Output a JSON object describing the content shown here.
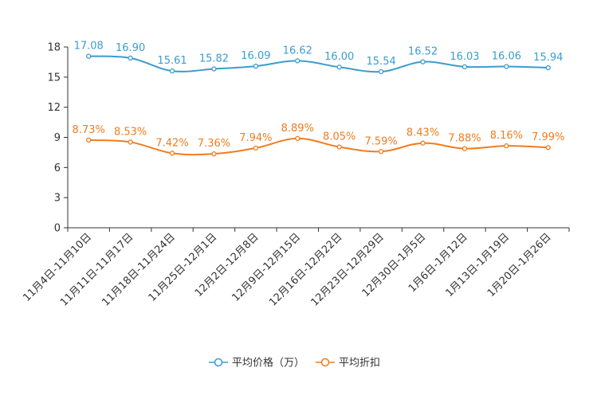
{
  "chart_data": {
    "type": "line",
    "title": "",
    "xlabel": "",
    "ylabel": "",
    "ylim": [
      0,
      18
    ],
    "yticks": [
      0,
      3,
      6,
      9,
      12,
      15,
      18
    ],
    "grid": false,
    "legend_position": "bottom-center",
    "categories": [
      "11月4日-11月10日",
      "11月11日-11月17日",
      "11月18日-11月24日",
      "11月25日-12月1日",
      "12月2日-12月8日",
      "12月9日-12月15日",
      "12月16日-12月22日",
      "12月23日-12月29日",
      "12月30日-1月5日",
      "1月6日-1月12日",
      "1月13日-1月19日",
      "1月20日-1月26日"
    ],
    "series": [
      {
        "name": "平均价格（万）",
        "color": "#3b9ccf",
        "values": [
          17.08,
          16.9,
          15.61,
          15.82,
          16.09,
          16.62,
          16.0,
          15.54,
          16.52,
          16.03,
          16.06,
          15.94
        ],
        "labels": [
          "17.08",
          "16.90",
          "15.61",
          "15.82",
          "16.09",
          "16.62",
          "16.00",
          "15.54",
          "16.52",
          "16.03",
          "16.06",
          "15.94"
        ]
      },
      {
        "name": "平均折扣",
        "color": "#f07c1e",
        "values": [
          8.73,
          8.53,
          7.42,
          7.36,
          7.94,
          8.89,
          8.05,
          7.59,
          8.43,
          7.88,
          8.16,
          7.99
        ],
        "labels": [
          "8.73%",
          "8.53%",
          "7.42%",
          "7.36%",
          "7.94%",
          "8.89%",
          "8.05%",
          "7.59%",
          "8.43%",
          "7.88%",
          "8.16%",
          "7.99%"
        ]
      }
    ]
  }
}
